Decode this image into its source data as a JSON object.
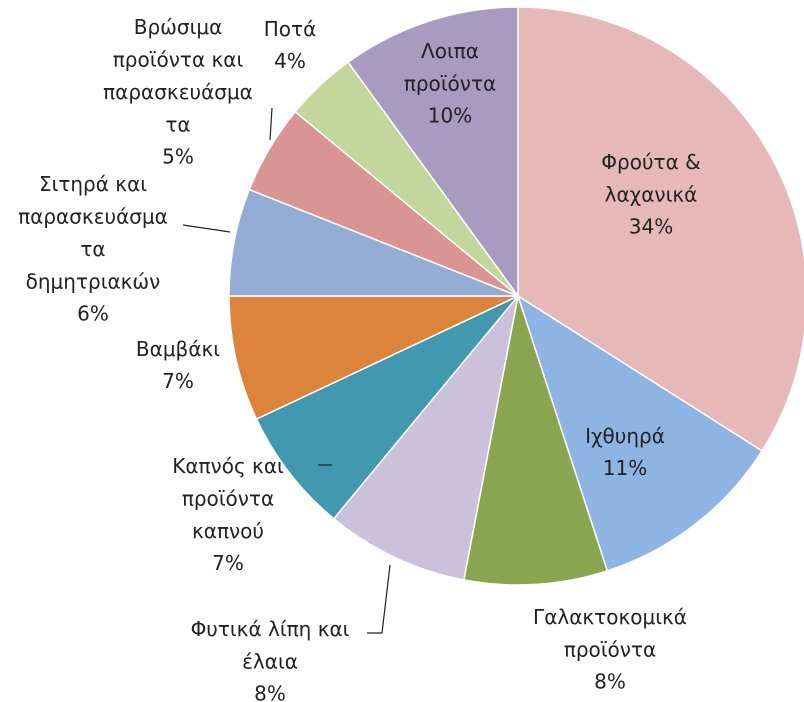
{
  "chart_data": {
    "type": "pie",
    "categories": [
      "Φρούτα &\nλαχανικά",
      "Ιχθυηρά",
      "Γαλακτοκομικά\nπροϊόντα",
      "Φυτικά λίπη και\nέλαια",
      "Καπνός και\nπροϊόντα\nκαπνού",
      "Βαμβάκι",
      "Σιτηρά και\nπαρασκευάσμα\nτα\nδημητριακών",
      "Βρώσιμα\nπροϊόντα και\nπαρασκευάσμα\nτα",
      "Ποτά",
      "Λοιπα\nπροϊόντα"
    ],
    "values": [
      34,
      11,
      8,
      8,
      7,
      7,
      6,
      5,
      4,
      10
    ],
    "value_labels": [
      "34%",
      "11%",
      "8%",
      "8%",
      "7%",
      "7%",
      "6%",
      "5%",
      "4%",
      "10%"
    ],
    "colors": [
      "#e6b9b8",
      "#8eb4e3",
      "#8aa54f",
      "#ccc1da",
      "#4298af",
      "#dd843c",
      "#95acd5",
      "#d99594",
      "#c3d69b",
      "#a79bc0"
    ]
  }
}
